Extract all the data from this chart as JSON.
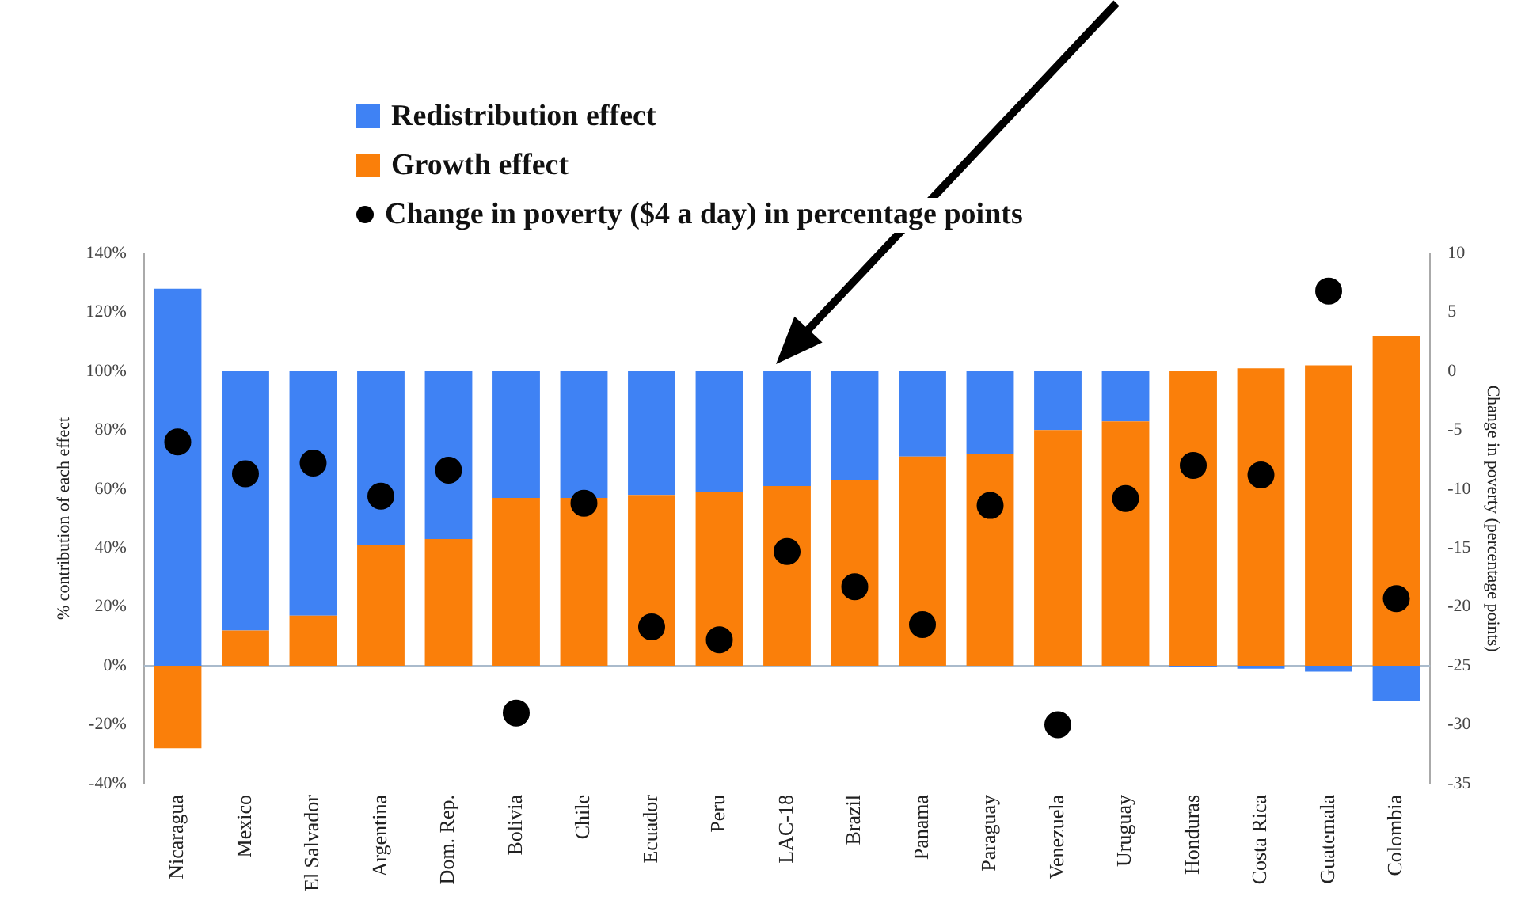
{
  "chart_data": {
    "type": "bar",
    "stacked": true,
    "ylabel": "% contribution of each effect",
    "y2label": "Change in poverty (percentage points)",
    "categories": [
      "Nicaragua",
      "Mexico",
      "El Salvador",
      "Argentina",
      "Dom. Rep.",
      "Bolivia",
      "Chile",
      "Ecuador",
      "Peru",
      "LAC-18",
      "Brazil",
      "Panama",
      "Paraguay",
      "Venezuela",
      "Uruguay",
      "Honduras",
      "Costa Rica",
      "Guatemala",
      "Colombia"
    ],
    "series": [
      {
        "name": "Growth effect",
        "color": "#fa7f0a",
        "values": [
          -28,
          12,
          17,
          41,
          43,
          57,
          57,
          58,
          59,
          61,
          63,
          71,
          72,
          80,
          83,
          100,
          101,
          102,
          112
        ]
      },
      {
        "name": "Redistribution effect",
        "color": "#3f82f4",
        "values": [
          128,
          88,
          83,
          59,
          57,
          43,
          43,
          42,
          41,
          39,
          37,
          29,
          28,
          20,
          17,
          -0.5,
          -1,
          -2,
          -12
        ]
      },
      {
        "name": "Change in poverty ($4 a day) in percentage points",
        "type": "scatter",
        "axis": "y2",
        "color": "#000000",
        "x": [
          "Nicaragua",
          "Mexico",
          "El Salvador",
          "Argentina",
          "Dom. Rep.",
          "Bolivia",
          "Chile",
          "Ecuador",
          "Peru",
          "LAC-18",
          "Brazil",
          "Panama",
          "Paraguay",
          "Venezuela",
          "Uruguay",
          "Honduras",
          "Costa Rica",
          "Guatemala",
          "Colombia"
        ],
        "values": [
          -6,
          -8.7,
          -7.8,
          -10.6,
          -8.4,
          -29,
          -11.2,
          -21.7,
          -22.8,
          -15.3,
          -18.3,
          -21.5,
          -11.4,
          -30,
          -10.8,
          -8,
          -8.8,
          6.8,
          -19.3
        ]
      }
    ],
    "ylim": [
      -40,
      140
    ],
    "yticks": [
      {
        "value": -40,
        "label": "-40%"
      },
      {
        "value": -20,
        "label": "-20%"
      },
      {
        "value": 0,
        "label": "0%"
      },
      {
        "value": 20,
        "label": "20%"
      },
      {
        "value": 40,
        "label": "40%"
      },
      {
        "value": 60,
        "label": "60%"
      },
      {
        "value": 80,
        "label": "80%"
      },
      {
        "value": 100,
        "label": "100%"
      },
      {
        "value": 120,
        "label": "120%"
      },
      {
        "value": 140,
        "label": "140%"
      }
    ],
    "y2lim": [
      -35,
      10
    ],
    "y2ticks": [
      -35,
      -30,
      -25,
      -20,
      -15,
      -10,
      -5,
      0,
      5,
      10
    ],
    "ref_lines": [
      {
        "axis": "y",
        "value": 0,
        "color": "#aabbcc"
      }
    ],
    "grid": false,
    "legend": "top",
    "marker": "circle"
  }
}
